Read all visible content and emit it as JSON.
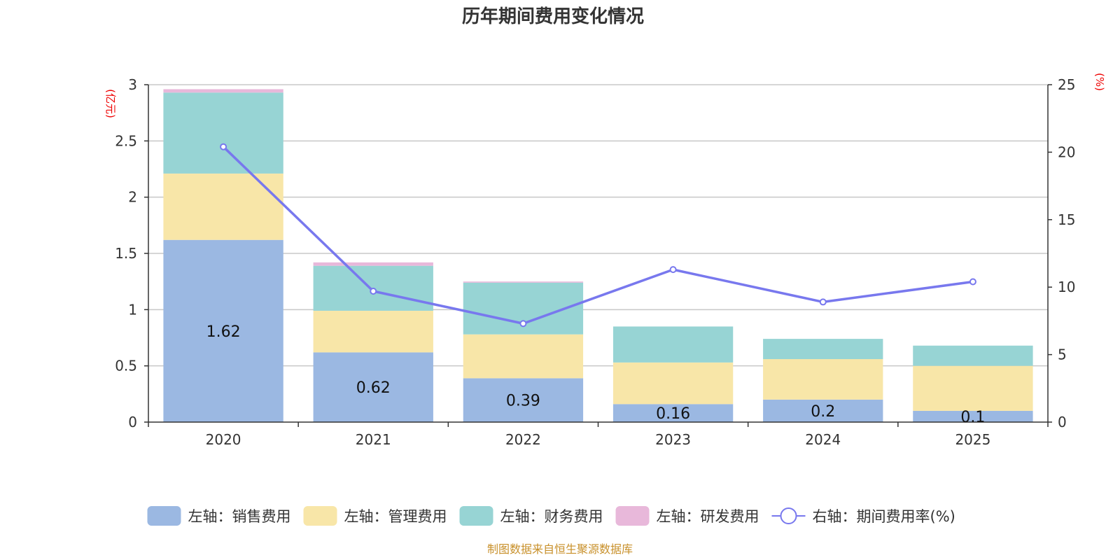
{
  "chart_data": {
    "type": "bar",
    "title": "历年期间费用变化情况",
    "categories": [
      "2020",
      "2021",
      "2022",
      "2023",
      "2024",
      "2025"
    ],
    "series": [
      {
        "name": "左轴：销售费用",
        "axis": "left",
        "color": "#9bb8e2",
        "values": [
          1.62,
          0.62,
          0.39,
          0.16,
          0.2,
          0.1
        ]
      },
      {
        "name": "左轴：管理费用",
        "axis": "left",
        "color": "#f8e6a8",
        "values": [
          0.59,
          0.37,
          0.39,
          0.37,
          0.36,
          0.4
        ]
      },
      {
        "name": "左轴：财务费用",
        "axis": "left",
        "color": "#97d4d4",
        "values": [
          0.72,
          0.4,
          0.46,
          0.32,
          0.18,
          0.18
        ]
      },
      {
        "name": "左轴：研发费用",
        "axis": "left",
        "color": "#e8b8da",
        "values": [
          0.03,
          0.03,
          0.01,
          0.0,
          0.0,
          0.0
        ]
      },
      {
        "name": "右轴：期间费用率(%)",
        "axis": "right",
        "type": "line",
        "color": "#7878ee",
        "values": [
          20.4,
          9.7,
          7.3,
          11.3,
          8.9,
          10.4
        ]
      }
    ],
    "left_axis": {
      "unit": "(亿元)",
      "ylim": [
        0,
        3
      ],
      "ticks": [
        "0",
        "0.5",
        "1",
        "1.5",
        "2",
        "2.5",
        "3"
      ]
    },
    "right_axis": {
      "unit": "(%)",
      "ylim": [
        0,
        25
      ],
      "ticks": [
        "0",
        "5",
        "10",
        "15",
        "20",
        "25"
      ]
    },
    "bar_labels": [
      "1.62",
      "0.62",
      "0.39",
      "0.16",
      "0.2",
      "0.1"
    ],
    "grid": true,
    "legend_position": "bottom",
    "source": "制图数据来自恒生聚源数据库"
  }
}
